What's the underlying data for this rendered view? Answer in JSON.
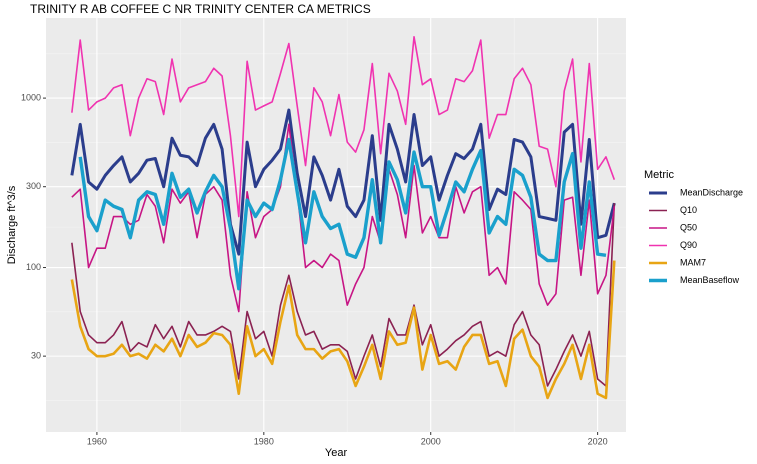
{
  "chart_data": {
    "type": "line",
    "title": "TRINITY R AB COFFEE C NR TRINITY CENTER CA  METRICS",
    "x_label": "Year",
    "y_label": "Discharge ft^3/s",
    "legend_title": "Metric",
    "log_y": true,
    "grid": true,
    "legend_position": "right",
    "x": [
      1957,
      1958,
      1959,
      1960,
      1961,
      1962,
      1963,
      1964,
      1965,
      1966,
      1967,
      1968,
      1969,
      1970,
      1971,
      1972,
      1973,
      1974,
      1975,
      1976,
      1977,
      1978,
      1979,
      1980,
      1981,
      1982,
      1983,
      1984,
      1985,
      1986,
      1987,
      1988,
      1989,
      1990,
      1991,
      1992,
      1993,
      1994,
      1995,
      1996,
      1997,
      1998,
      1999,
      2000,
      2001,
      2002,
      2003,
      2004,
      2005,
      2006,
      2007,
      2008,
      2009,
      2010,
      2011,
      2012,
      2013,
      2014,
      2015,
      2016,
      2017,
      2018,
      2019,
      2020,
      2021,
      2022
    ],
    "xlim": [
      1953.9,
      2023.4
    ],
    "xticks": [
      1960,
      1980,
      2000,
      2020
    ],
    "ylim": [
      10.7,
      2970
    ],
    "yticks": [
      30,
      100,
      300,
      1000
    ],
    "series": [
      {
        "name": "MeanDischarge",
        "color": "#2b3d8c",
        "width": 3,
        "values": [
          350,
          700,
          320,
          290,
          350,
          400,
          450,
          320,
          360,
          430,
          440,
          300,
          580,
          460,
          450,
          400,
          580,
          700,
          500,
          180,
          120,
          550,
          300,
          380,
          430,
          500,
          850,
          360,
          200,
          450,
          350,
          250,
          380,
          230,
          200,
          250,
          600,
          190,
          700,
          500,
          320,
          800,
          400,
          450,
          250,
          350,
          470,
          440,
          500,
          700,
          220,
          290,
          270,
          570,
          550,
          450,
          200,
          195,
          190,
          630,
          700,
          180,
          570,
          150,
          155,
          240
        ]
      },
      {
        "name": "Q10",
        "color": "#8b2252",
        "width": 1.6,
        "values": [
          140,
          55,
          40,
          36,
          36,
          40,
          48,
          32,
          36,
          34,
          46,
          38,
          45,
          34,
          48,
          40,
          40,
          42,
          45,
          42,
          22,
          55,
          38,
          42,
          30,
          60,
          90,
          55,
          40,
          42,
          33,
          35,
          35,
          32,
          22,
          30,
          40,
          26,
          50,
          40,
          40,
          60,
          35,
          46,
          30,
          33,
          37,
          40,
          45,
          48,
          30,
          32,
          30,
          46,
          55,
          40,
          35,
          20,
          25,
          32,
          40,
          30,
          42,
          22,
          20,
          240
        ]
      },
      {
        "name": "Q50",
        "color": "#c71585",
        "width": 1.6,
        "values": [
          260,
          290,
          100,
          130,
          130,
          200,
          200,
          180,
          190,
          270,
          230,
          140,
          290,
          240,
          280,
          150,
          270,
          300,
          250,
          90,
          55,
          280,
          150,
          200,
          220,
          300,
          700,
          280,
          100,
          110,
          100,
          120,
          110,
          60,
          80,
          100,
          200,
          140,
          380,
          270,
          150,
          400,
          160,
          200,
          150,
          150,
          300,
          210,
          280,
          300,
          90,
          100,
          80,
          280,
          250,
          220,
          80,
          60,
          70,
          250,
          260,
          90,
          250,
          70,
          90,
          230
        ]
      },
      {
        "name": "Q90",
        "color": "#f033b0",
        "width": 1.6,
        "values": [
          820,
          2200,
          850,
          950,
          1000,
          1150,
          1200,
          600,
          1000,
          1300,
          1250,
          800,
          1700,
          950,
          1150,
          1200,
          1250,
          1500,
          1350,
          600,
          200,
          1650,
          850,
          900,
          950,
          1400,
          2100,
          900,
          400,
          1150,
          950,
          600,
          1050,
          550,
          480,
          650,
          1600,
          470,
          1400,
          1100,
          700,
          2300,
          1200,
          1300,
          800,
          850,
          1300,
          1250,
          1450,
          2200,
          580,
          800,
          800,
          1300,
          1500,
          1200,
          520,
          500,
          300,
          1100,
          1700,
          420,
          1600,
          380,
          450,
          330
        ]
      },
      {
        "name": "MAM7",
        "color": "#e8a514",
        "width": 2.6,
        "values": [
          85,
          45,
          33,
          30,
          30,
          31,
          35,
          30,
          31,
          29,
          35,
          32,
          38,
          30,
          40,
          34,
          36,
          41,
          40,
          35,
          18,
          45,
          30,
          33,
          27,
          48,
          78,
          40,
          33,
          33,
          29,
          32,
          33,
          28,
          20,
          26,
          35,
          22,
          42,
          35,
          36,
          58,
          25,
          40,
          27,
          28,
          25,
          34,
          40,
          40,
          27,
          28,
          20,
          38,
          43,
          30,
          26,
          17,
          22,
          27,
          35,
          22,
          35,
          18,
          17,
          110
        ]
      },
      {
        "name": "MeanBaseflow",
        "color": "#1aa0cc",
        "width": 3.4,
        "values": [
          null,
          450,
          200,
          165,
          250,
          230,
          220,
          150,
          250,
          280,
          270,
          180,
          360,
          260,
          290,
          210,
          280,
          350,
          300,
          170,
          75,
          250,
          200,
          240,
          220,
          330,
          570,
          280,
          140,
          280,
          200,
          170,
          180,
          120,
          115,
          150,
          330,
          140,
          420,
          330,
          210,
          480,
          300,
          300,
          155,
          220,
          320,
          280,
          380,
          490,
          160,
          200,
          180,
          380,
          350,
          260,
          120,
          110,
          110,
          320,
          470,
          130,
          320,
          120,
          118,
          null
        ]
      }
    ]
  }
}
